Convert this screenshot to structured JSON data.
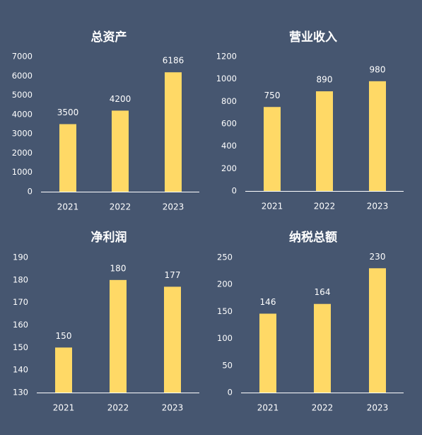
{
  "colors": {
    "background": "#465670",
    "bar": "#FFD966",
    "text": "#FFFFFF",
    "axis": "#FFFFFF"
  },
  "chart_data": [
    {
      "type": "bar",
      "title": "总资产",
      "categories": [
        "2021",
        "2022",
        "2023"
      ],
      "values": [
        3500,
        4200,
        6186
      ],
      "ylim": [
        0,
        7000
      ],
      "yticks": [
        0,
        1000,
        2000,
        3000,
        4000,
        5000,
        6000,
        7000
      ],
      "grid": false,
      "data_labels": true
    },
    {
      "type": "bar",
      "title": "营业收入",
      "categories": [
        "2021",
        "2022",
        "2023"
      ],
      "values": [
        750,
        890,
        980
      ],
      "ylim": [
        0,
        1200
      ],
      "yticks": [
        0,
        200,
        400,
        600,
        800,
        1000,
        1200
      ],
      "grid": false,
      "data_labels": true
    },
    {
      "type": "bar",
      "title": "净利润",
      "categories": [
        "2021",
        "2022",
        "2023"
      ],
      "values": [
        150,
        180,
        177
      ],
      "ylim": [
        130,
        190
      ],
      "yticks": [
        130,
        140,
        150,
        160,
        170,
        180,
        190
      ],
      "grid": false,
      "data_labels": true
    },
    {
      "type": "bar",
      "title": "纳税总额",
      "categories": [
        "2021",
        "2022",
        "2023"
      ],
      "values": [
        146,
        164,
        230
      ],
      "ylim": [
        0,
        250
      ],
      "yticks": [
        0,
        50,
        100,
        150,
        200,
        250
      ],
      "grid": false,
      "data_labels": true
    }
  ]
}
